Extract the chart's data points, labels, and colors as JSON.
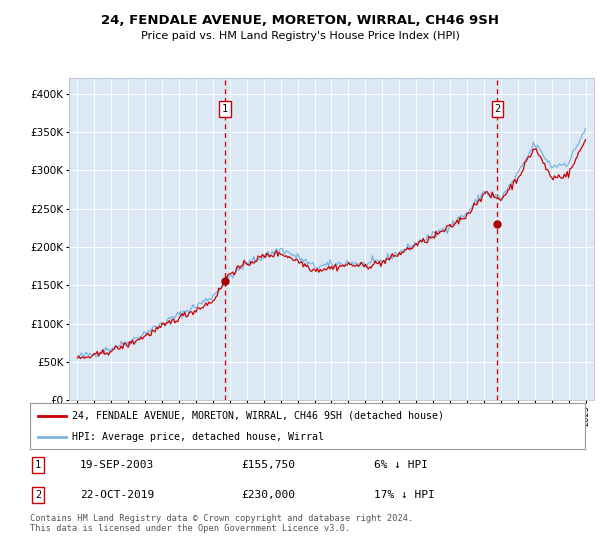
{
  "title": "24, FENDALE AVENUE, MORETON, WIRRAL, CH46 9SH",
  "subtitle": "Price paid vs. HM Land Registry's House Price Index (HPI)",
  "background_color": "#dce9f5",
  "legend_label_red": "24, FENDALE AVENUE, MORETON, WIRRAL, CH46 9SH (detached house)",
  "legend_label_blue": "HPI: Average price, detached house, Wirral",
  "sale1_date": "19-SEP-2003",
  "sale1_price": "£155,750",
  "sale1_hpi": "6% ↓ HPI",
  "sale2_date": "22-OCT-2019",
  "sale2_price": "£230,000",
  "sale2_hpi": "17% ↓ HPI",
  "footer": "Contains HM Land Registry data © Crown copyright and database right 2024.\nThis data is licensed under the Open Government Licence v3.0.",
  "ylim": [
    0,
    420000
  ],
  "yticks": [
    0,
    50000,
    100000,
    150000,
    200000,
    250000,
    300000,
    350000,
    400000
  ],
  "sale1_x": 2003.72,
  "sale2_x": 2019.8,
  "hpi_annual": [
    1995,
    1996,
    1997,
    1998,
    1999,
    2000,
    2001,
    2002,
    2003,
    2004,
    2005,
    2006,
    2007,
    2008,
    2009,
    2010,
    2011,
    2012,
    2013,
    2014,
    2015,
    2016,
    2017,
    2018,
    2019,
    2020,
    2021,
    2022,
    2023,
    2024,
    2025
  ],
  "hpi_vals": [
    57000,
    61000,
    68000,
    76000,
    88000,
    100000,
    112000,
    123000,
    136000,
    162000,
    178000,
    188000,
    197000,
    187000,
    174000,
    177000,
    180000,
    177000,
    182000,
    193000,
    205000,
    215000,
    228000,
    244000,
    272000,
    263000,
    295000,
    335000,
    305000,
    310000,
    355000
  ],
  "red_vals": [
    54000,
    58000,
    65000,
    73000,
    84000,
    96000,
    108000,
    118000,
    130000,
    166000,
    178000,
    188000,
    192000,
    182000,
    170000,
    173000,
    177000,
    175000,
    180000,
    191000,
    203000,
    213000,
    226000,
    242000,
    270000,
    262000,
    290000,
    330000,
    290000,
    295000,
    340000
  ]
}
